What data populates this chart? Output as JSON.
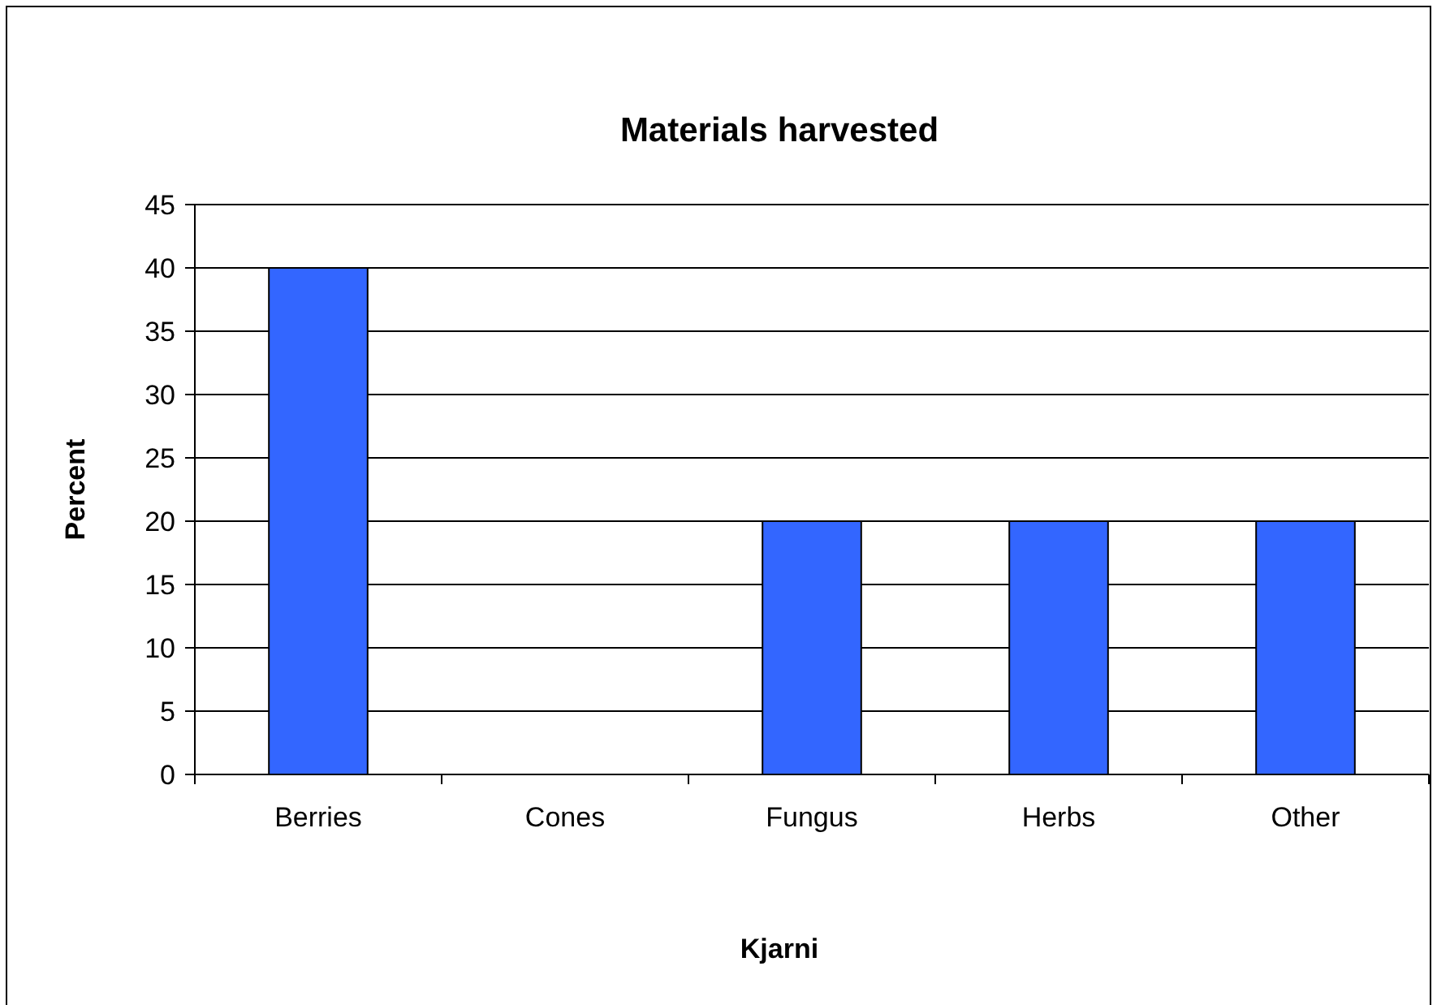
{
  "chart_data": {
    "type": "bar",
    "title": "Materials harvested",
    "xlabel": "Kjarni",
    "ylabel": "Percent",
    "categories": [
      "Berries",
      "Cones",
      "Fungus",
      "Herbs",
      "Other"
    ],
    "values": [
      40,
      0,
      20,
      20,
      20
    ],
    "color": "#3366ff",
    "ylim": [
      0,
      45
    ],
    "yticks": [
      0,
      5,
      10,
      15,
      20,
      25,
      30,
      35,
      40,
      45
    ],
    "grid": "y"
  }
}
